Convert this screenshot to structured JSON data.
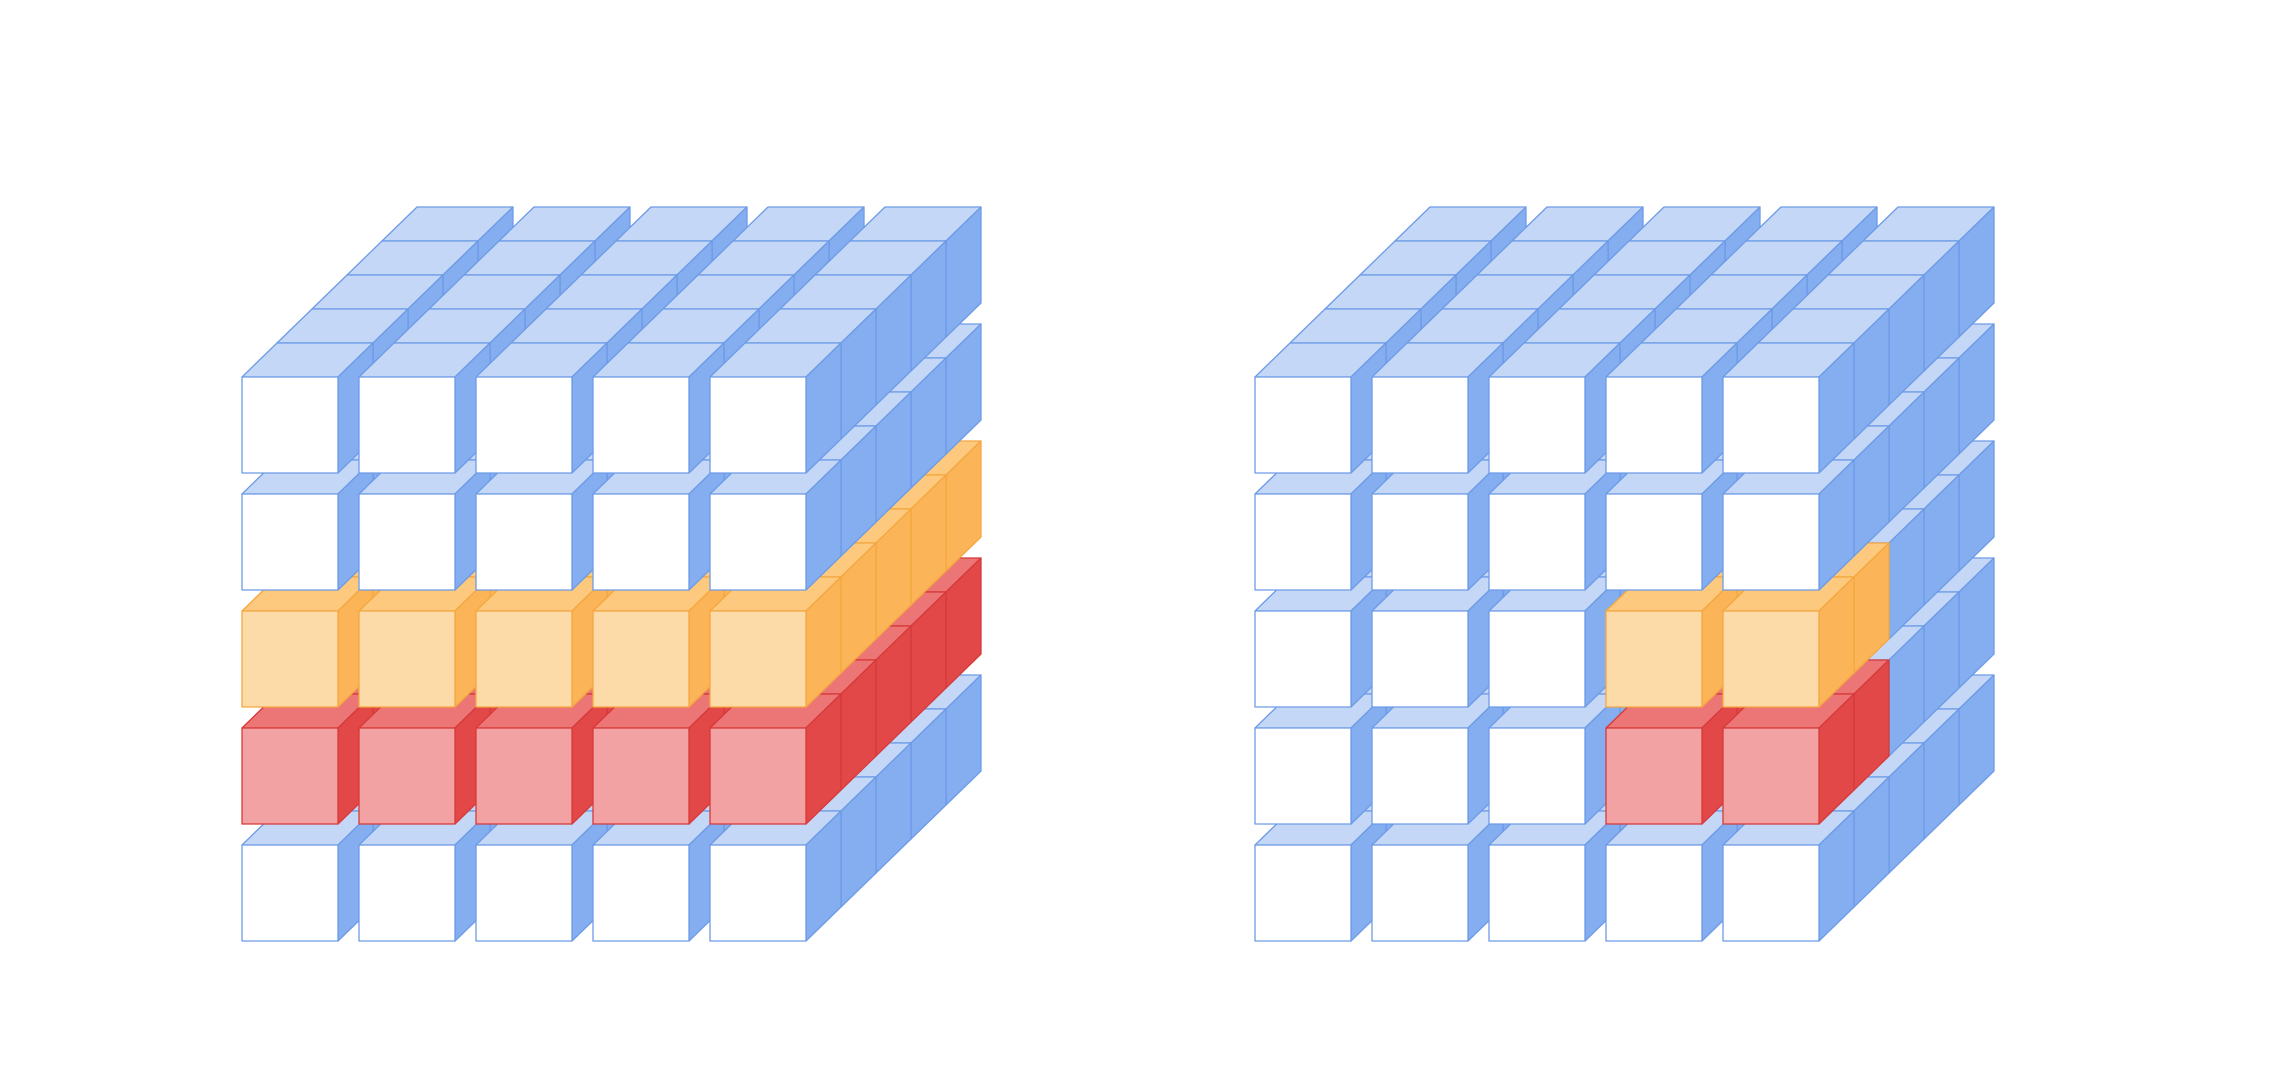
{
  "diagram": {
    "description_free": true,
    "grid_size": [
      5,
      5,
      5
    ],
    "layer_order": "top_to_bottom",
    "colors": {
      "default": {
        "front": "#ffffff",
        "top": "#c5d7f7",
        "side": "#85aef0",
        "stroke": "#6d9be6"
      },
      "orange": {
        "front": "#fddba9",
        "top": "#fdc97e",
        "side": "#fbb558",
        "stroke": "#f4a73f"
      },
      "red": {
        "front": "#f2a2a2",
        "top": "#ec7575",
        "side": "#e34848",
        "stroke": "#d63a3a"
      }
    },
    "cubes": [
      {
        "name": "left-cube",
        "highlights": [
          {
            "layer": 2,
            "color": "orange",
            "cols": [
              0,
              1,
              2,
              3,
              4
            ],
            "depths": [
              0,
              1,
              2,
              3,
              4
            ]
          },
          {
            "layer": 3,
            "color": "red",
            "cols": [
              0,
              1,
              2,
              3,
              4
            ],
            "depths": [
              0,
              1,
              2,
              3,
              4
            ]
          }
        ]
      },
      {
        "name": "right-cube",
        "highlights": [
          {
            "layer": 2,
            "color": "orange",
            "cols": [
              3,
              4
            ],
            "depths": [
              0,
              1
            ]
          },
          {
            "layer": 3,
            "color": "red",
            "cols": [
              3,
              4
            ],
            "depths": [
              0,
              1
            ]
          }
        ]
      }
    ]
  }
}
